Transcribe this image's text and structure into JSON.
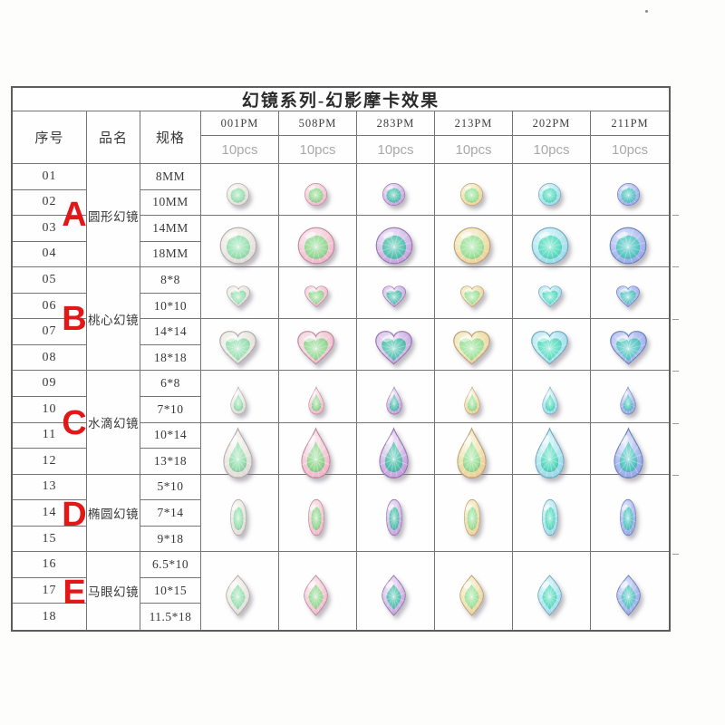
{
  "title": "幻镜系列-幻影摩卡效果",
  "headers": {
    "serial": "序号",
    "name": "品名",
    "spec": "规格"
  },
  "letter_color": "#e21717",
  "products": [
    {
      "code": "001PM",
      "qty": "10pcs",
      "rim": "#dcd6d4",
      "mid": "#efece6",
      "core": "#97e0b2"
    },
    {
      "code": "508PM",
      "qty": "10pcs",
      "rim": "#eeadc4",
      "mid": "#f5d4dd",
      "core": "#92da92"
    },
    {
      "code": "283PM",
      "qty": "10pcs",
      "rim": "#bb93d8",
      "mid": "#dcc8ec",
      "core": "#52c3ae"
    },
    {
      "code": "213PM",
      "qty": "10pcs",
      "rim": "#e9c98e",
      "mid": "#f2e7bd",
      "core": "#9be29b"
    },
    {
      "code": "202PM",
      "qty": "10pcs",
      "rim": "#8ed3e8",
      "mid": "#bfeaf2",
      "core": "#5bdcc0"
    },
    {
      "code": "211PM",
      "qty": "10pcs",
      "rim": "#8aa0e6",
      "mid": "#b9c6f1",
      "core": "#56c8c2"
    }
  ],
  "groups": [
    {
      "letter": "A",
      "name": "圆形幻镜",
      "shape": "circle",
      "rows": [
        {
          "serial": "01",
          "spec": "8MM"
        },
        {
          "serial": "02",
          "spec": "10MM"
        },
        {
          "serial": "03",
          "spec": "14MM"
        },
        {
          "serial": "04",
          "spec": "18MM"
        }
      ],
      "gem_cells": [
        {
          "rows": 2,
          "size": "small"
        },
        {
          "rows": 2,
          "size": "large"
        }
      ]
    },
    {
      "letter": "B",
      "name": "桃心幻镜",
      "shape": "heart",
      "rows": [
        {
          "serial": "05",
          "spec": "8*8"
        },
        {
          "serial": "06",
          "spec": "10*10"
        },
        {
          "serial": "07",
          "spec": "14*14"
        },
        {
          "serial": "08",
          "spec": "18*18"
        }
      ],
      "gem_cells": [
        {
          "rows": 2,
          "size": "small"
        },
        {
          "rows": 2,
          "size": "large"
        }
      ]
    },
    {
      "letter": "C",
      "name": "水滴幻镜",
      "shape": "drop",
      "rows": [
        {
          "serial": "09",
          "spec": "6*8"
        },
        {
          "serial": "10",
          "spec": "7*10"
        },
        {
          "serial": "11",
          "spec": "10*14"
        },
        {
          "serial": "12",
          "spec": "13*18"
        }
      ],
      "gem_cells": [
        {
          "rows": 2,
          "size": "small"
        },
        {
          "rows": 2,
          "size": "large"
        }
      ]
    },
    {
      "letter": "D",
      "name": "椭圆幻镜",
      "shape": "oval",
      "rows": [
        {
          "serial": "13",
          "spec": "5*10"
        },
        {
          "serial": "14",
          "spec": "7*14"
        },
        {
          "serial": "15",
          "spec": "9*18"
        }
      ],
      "gem_cells": [
        {
          "rows": 3,
          "size": "single"
        }
      ]
    },
    {
      "letter": "E",
      "name": "马眼幻镜",
      "shape": "marquise",
      "rows": [
        {
          "serial": "16",
          "spec": "6.5*10"
        },
        {
          "serial": "17",
          "spec": "10*15"
        },
        {
          "serial": "18",
          "spec": "11.5*18"
        }
      ],
      "gem_cells": [
        {
          "rows": 3,
          "size": "single"
        }
      ]
    }
  ]
}
